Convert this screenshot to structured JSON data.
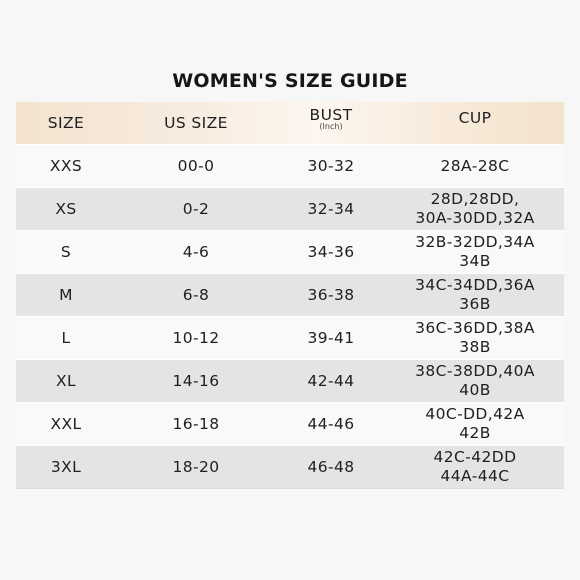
{
  "title": "WOMEN'S SIZE GUIDE",
  "headers": {
    "size": "SIZE",
    "us_size": "US SIZE",
    "bust": "BUST",
    "bust_unit": "(Inch)",
    "cup": "CUP"
  },
  "rows": [
    {
      "size": "XXS",
      "us_size": "00-0",
      "bust": "30-32",
      "cup": [
        "28A-28C"
      ]
    },
    {
      "size": "XS",
      "us_size": "0-2",
      "bust": "32-34",
      "cup": [
        "28D,28DD,",
        "30A-30DD,32A"
      ]
    },
    {
      "size": "S",
      "us_size": "4-6",
      "bust": "34-36",
      "cup": [
        "32B-32DD,34A",
        "34B"
      ]
    },
    {
      "size": "M",
      "us_size": "6-8",
      "bust": "36-38",
      "cup": [
        "34C-34DD,36A",
        "36B"
      ]
    },
    {
      "size": "L",
      "us_size": "10-12",
      "bust": "39-41",
      "cup": [
        "36C-36DD,38A",
        "38B"
      ]
    },
    {
      "size": "XL",
      "us_size": "14-16",
      "bust": "42-44",
      "cup": [
        "38C-38DD,40A",
        "40B"
      ]
    },
    {
      "size": "XXL",
      "us_size": "16-18",
      "bust": "44-46",
      "cup": [
        "40C-DD,42A",
        "42B"
      ]
    },
    {
      "size": "3XL",
      "us_size": "18-20",
      "bust": "46-48",
      "cup": [
        "42C-42DD",
        "44A-44C"
      ]
    }
  ]
}
